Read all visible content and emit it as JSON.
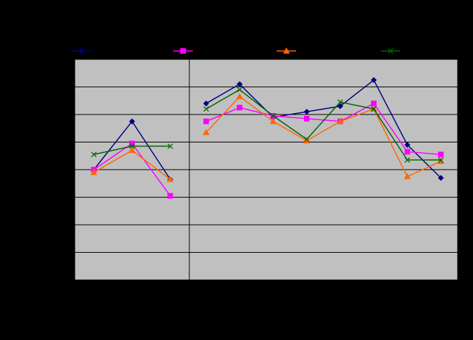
{
  "chart_data": {
    "type": "line",
    "title": "",
    "xlabel": "",
    "ylabel": "",
    "ylim": [
      0,
      8
    ],
    "grid": true,
    "legend_position": "top",
    "plot_background": "#C0C0C0",
    "page_background": "#000000",
    "panels": [
      {
        "x": [
          1,
          2,
          3
        ]
      },
      {
        "x": [
          1,
          2,
          3,
          4,
          5,
          6,
          7,
          8
        ]
      }
    ],
    "series": [
      {
        "name": "",
        "color": "#000080",
        "marker": "diamond",
        "panels": [
          [
            4.0,
            5.75,
            3.65
          ],
          [
            6.4,
            7.1,
            5.9,
            6.1,
            6.3,
            7.25,
            4.9,
            3.7
          ]
        ]
      },
      {
        "name": "",
        "color": "#FF00FF",
        "marker": "square",
        "panels": [
          [
            4.0,
            4.95,
            3.05
          ],
          [
            5.75,
            6.25,
            5.95,
            5.85,
            5.75,
            6.4,
            4.65,
            4.55
          ]
        ]
      },
      {
        "name": "",
        "color": "#FF6600",
        "marker": "triangle",
        "panels": [
          [
            3.9,
            4.7,
            3.65
          ],
          [
            5.35,
            6.65,
            5.75,
            5.05,
            5.75,
            6.2,
            3.75,
            4.3
          ]
        ]
      },
      {
        "name": "",
        "color": "#006400",
        "marker": "x",
        "panels": [
          [
            4.55,
            4.85,
            4.85
          ],
          [
            6.2,
            6.9,
            5.95,
            5.1,
            6.45,
            6.2,
            4.35,
            4.35
          ]
        ]
      }
    ]
  }
}
